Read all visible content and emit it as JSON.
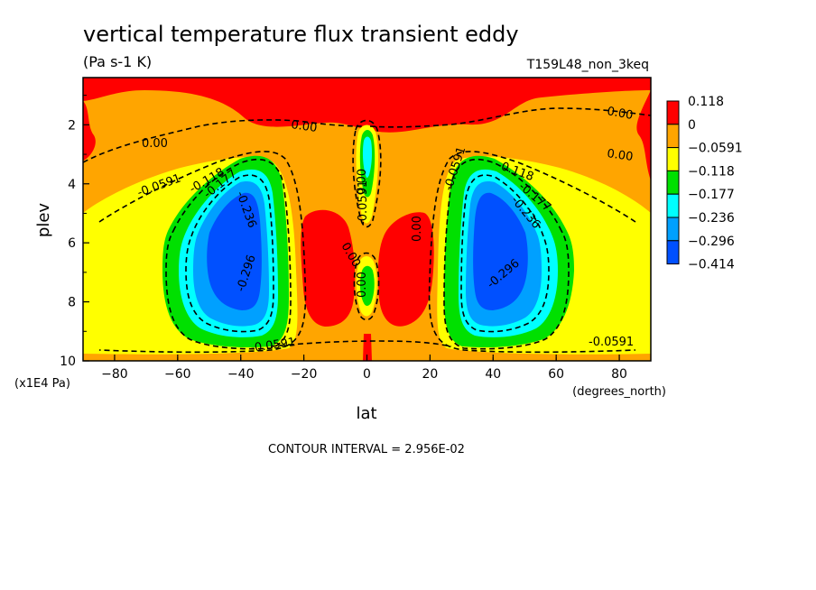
{
  "chart_data": {
    "type": "heatmap",
    "title": "vertical temperature flux transient eddy",
    "subtitle": "(Pa s-1 K)",
    "run_label": "T159L48_non_3keq",
    "xlabel": "lat",
    "x_units": "(degrees_north)",
    "ylabel": "plev",
    "y_units": "(x1E4 Pa)",
    "xlim": [
      -90,
      90
    ],
    "ylim": [
      10,
      0.4
    ],
    "x_ticks": [
      -80,
      -60,
      -40,
      -20,
      0,
      20,
      40,
      60,
      80
    ],
    "x_tick_labels": [
      "-80",
      "-60",
      "-40",
      "-20",
      "0",
      "20",
      "40",
      "60",
      "80"
    ],
    "y_ticks": [
      2,
      4,
      6,
      8,
      10
    ],
    "y_tick_labels": [
      "2",
      "4",
      "6",
      "8",
      "10"
    ],
    "contour_interval_text": "CONTOUR INTERVAL = 2.956E-02",
    "contour_labels": [
      "0.00",
      "0.00",
      "0.00",
      "0.00",
      "0.00",
      "0.00",
      "0.00",
      "0.00",
      "-0.0591",
      "-0.0591",
      "-0.0591",
      "-0.0591",
      "-0.0591",
      "-0.118",
      "-0.118",
      "-0.177",
      "-0.177",
      "-0.236",
      "-0.236",
      "-0.296",
      "-0.296"
    ],
    "legend": {
      "position": "right",
      "levels": [
        {
          "label": "0.118",
          "color": "#ff0000"
        },
        {
          "label": "0",
          "color": "#ffa500"
        },
        {
          "label": "-0.0591",
          "color": "#ffff00"
        },
        {
          "label": "-0.118",
          "color": "#00e000"
        },
        {
          "label": "-0.177",
          "color": "#00ffff"
        },
        {
          "label": "-0.236",
          "color": "#00a0ff"
        },
        {
          "label": "-0.296",
          "color": "#0050ff"
        },
        {
          "label": "-0.414",
          "color": "#0050ff"
        }
      ]
    },
    "field_features": [
      {
        "name": "southern minimum",
        "lat": -42,
        "plev": 6.2,
        "value": -0.33
      },
      {
        "name": "northern minimum",
        "lat": 42,
        "plev": 6.2,
        "value": -0.33
      },
      {
        "name": "equatorial upper minimum",
        "lat": 0,
        "plev": 3.3,
        "value": -0.12
      },
      {
        "name": "equatorial lower minimum",
        "lat": 0,
        "plev": 7.6,
        "value": -0.09
      },
      {
        "name": "stratospheric positive band",
        "lat": 0,
        "plev": 1.2,
        "value": 0.03
      },
      {
        "name": "southern subtropical positive",
        "lat": -12,
        "plev": 6.5,
        "value": 0.01
      },
      {
        "name": "northern subtropical positive",
        "lat": 12,
        "plev": 6.5,
        "value": 0.01
      }
    ]
  }
}
